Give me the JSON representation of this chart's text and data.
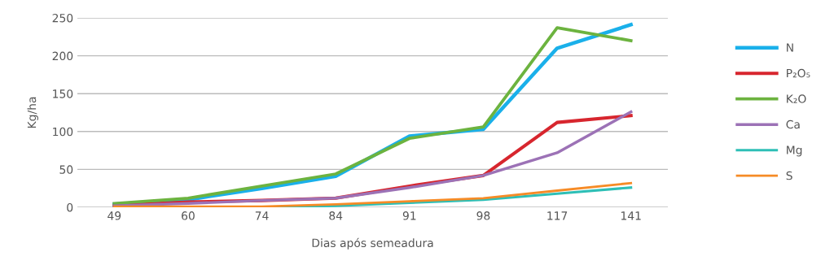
{
  "chart_data": {
    "type": "line",
    "xlabel": "Dias após semeadura",
    "ylabel": "Kg/ha",
    "categories": [
      "49",
      "60",
      "74",
      "84",
      "91",
      "98",
      "117",
      "141"
    ],
    "series": [
      {
        "name": "N",
        "color": "#1ab0ea",
        "values": [
          4,
          10,
          25,
          41,
          94,
          103,
          210,
          241
        ]
      },
      {
        "name": "P₂O₅",
        "color": "#d7262e",
        "values": [
          2,
          7,
          9,
          12,
          28,
          42,
          112,
          121
        ]
      },
      {
        "name": "K₂O",
        "color": "#6cb33f",
        "values": [
          5,
          12,
          28,
          44,
          91,
          106,
          237,
          220
        ]
      },
      {
        "name": "Ca",
        "color": "#9c72b6",
        "values": [
          2,
          5,
          9,
          12,
          26,
          42,
          72,
          126
        ]
      },
      {
        "name": "Mg",
        "color": "#2ebfb6",
        "values": [
          0,
          0,
          0,
          2,
          6,
          10,
          18,
          26
        ]
      },
      {
        "name": "S",
        "color": "#f68b26",
        "values": [
          1,
          1,
          1,
          4,
          8,
          12,
          22,
          32
        ]
      }
    ],
    "ylim": [
      0,
      250
    ],
    "yticks": [
      0,
      50,
      100,
      150,
      200,
      250
    ],
    "grid": "y",
    "legend": "right",
    "marker": "none",
    "line_style": "solid"
  }
}
